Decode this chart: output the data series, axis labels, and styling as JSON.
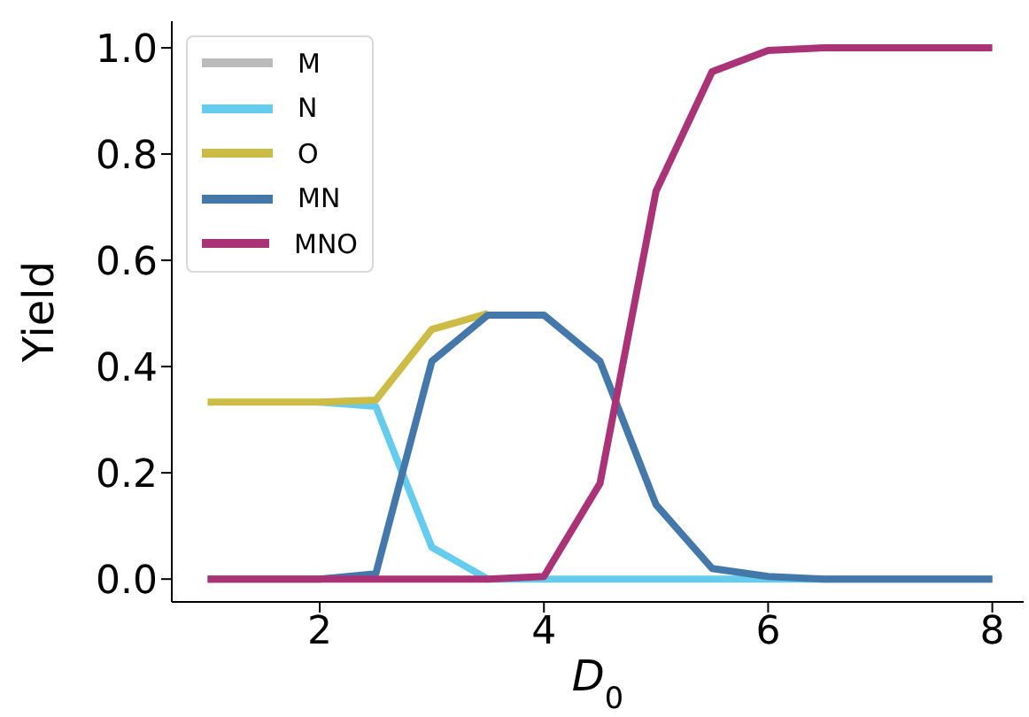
{
  "chart_data": {
    "type": "line",
    "xlabel": "D$_{0}$",
    "ylabel": "Yield",
    "x": [
      1,
      1.5,
      2,
      2.5,
      3,
      3.5,
      4,
      4.5,
      5,
      5.5,
      6,
      6.5,
      7,
      7.5,
      8
    ],
    "series": [
      {
        "name": "M",
        "color": "#bbbbbb",
        "values": [
          null,
          null,
          null,
          null,
          null,
          null,
          null,
          null,
          null,
          null,
          null,
          null,
          null,
          null,
          null
        ]
      },
      {
        "name": "N",
        "color": "#66ccee",
        "values": [
          null,
          null,
          0.333,
          0.325,
          0.06,
          0,
          0,
          0,
          0,
          0,
          0,
          0,
          0,
          0,
          0
        ]
      },
      {
        "name": "O",
        "color": "#ccbb44",
        "values": [
          0.333,
          0.333,
          0.333,
          0.337,
          0.47,
          0.5,
          null,
          null,
          null,
          null,
          null,
          null,
          null,
          null,
          null
        ]
      },
      {
        "name": "MN",
        "color": "#4477aa",
        "values": [
          0,
          0,
          0,
          0.01,
          0.41,
          0.497,
          0.497,
          0.41,
          0.14,
          0.02,
          0.005,
          0,
          0,
          0,
          0
        ]
      },
      {
        "name": "MNO",
        "color": "#aa3377",
        "values": [
          0,
          0,
          0,
          0,
          0,
          0,
          0.005,
          0.18,
          0.73,
          0.955,
          0.995,
          1,
          1,
          1,
          1
        ]
      }
    ],
    "xlim": [
      0.68,
      8.28
    ],
    "xticks": [
      2,
      4,
      6,
      8
    ],
    "ylim": [
      -0.043,
      1.05
    ],
    "yticks": [
      {
        "value": 0,
        "label": "0.0"
      },
      {
        "value": 0.2,
        "label": "0.2"
      },
      {
        "value": 0.4,
        "label": "0.4"
      },
      {
        "value": 0.6,
        "label": "0.6"
      },
      {
        "value": 0.8,
        "label": "0.8"
      },
      {
        "value": 1,
        "label": "1.0"
      }
    ],
    "legend": "top left",
    "line_style": "solid",
    "marker": "none",
    "grid": false
  }
}
